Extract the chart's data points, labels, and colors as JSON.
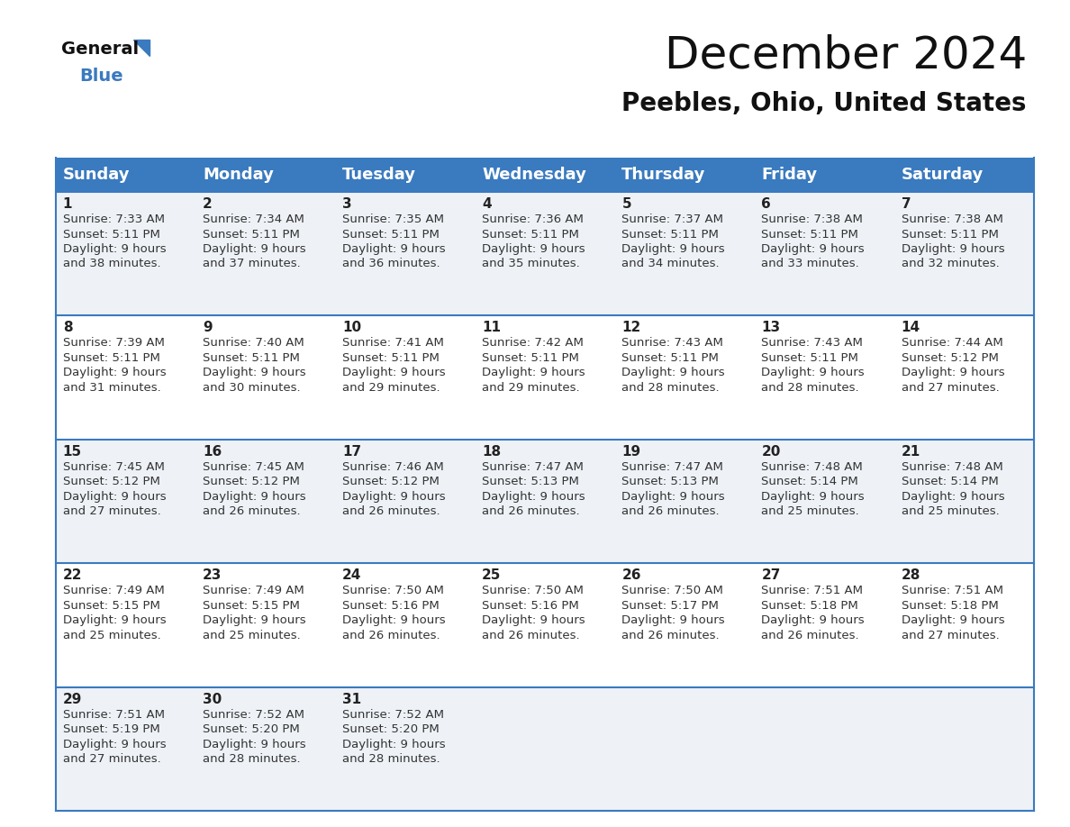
{
  "title": "December 2024",
  "subtitle": "Peebles, Ohio, United States",
  "header_bg": "#3a7abf",
  "header_text": "#ffffff",
  "row_bg_odd": "#eef2f7",
  "row_bg_even": "#ffffff",
  "border_color": "#3a7abf",
  "day_names": [
    "Sunday",
    "Monday",
    "Tuesday",
    "Wednesday",
    "Thursday",
    "Friday",
    "Saturday"
  ],
  "days": [
    {
      "day": 1,
      "sunrise": "7:33 AM",
      "sunset": "5:11 PM",
      "daylight": "9 hours\nand 38 minutes."
    },
    {
      "day": 2,
      "sunrise": "7:34 AM",
      "sunset": "5:11 PM",
      "daylight": "9 hours\nand 37 minutes."
    },
    {
      "day": 3,
      "sunrise": "7:35 AM",
      "sunset": "5:11 PM",
      "daylight": "9 hours\nand 36 minutes."
    },
    {
      "day": 4,
      "sunrise": "7:36 AM",
      "sunset": "5:11 PM",
      "daylight": "9 hours\nand 35 minutes."
    },
    {
      "day": 5,
      "sunrise": "7:37 AM",
      "sunset": "5:11 PM",
      "daylight": "9 hours\nand 34 minutes."
    },
    {
      "day": 6,
      "sunrise": "7:38 AM",
      "sunset": "5:11 PM",
      "daylight": "9 hours\nand 33 minutes."
    },
    {
      "day": 7,
      "sunrise": "7:38 AM",
      "sunset": "5:11 PM",
      "daylight": "9 hours\nand 32 minutes."
    },
    {
      "day": 8,
      "sunrise": "7:39 AM",
      "sunset": "5:11 PM",
      "daylight": "9 hours\nand 31 minutes."
    },
    {
      "day": 9,
      "sunrise": "7:40 AM",
      "sunset": "5:11 PM",
      "daylight": "9 hours\nand 30 minutes."
    },
    {
      "day": 10,
      "sunrise": "7:41 AM",
      "sunset": "5:11 PM",
      "daylight": "9 hours\nand 29 minutes."
    },
    {
      "day": 11,
      "sunrise": "7:42 AM",
      "sunset": "5:11 PM",
      "daylight": "9 hours\nand 29 minutes."
    },
    {
      "day": 12,
      "sunrise": "7:43 AM",
      "sunset": "5:11 PM",
      "daylight": "9 hours\nand 28 minutes."
    },
    {
      "day": 13,
      "sunrise": "7:43 AM",
      "sunset": "5:11 PM",
      "daylight": "9 hours\nand 28 minutes."
    },
    {
      "day": 14,
      "sunrise": "7:44 AM",
      "sunset": "5:12 PM",
      "daylight": "9 hours\nand 27 minutes."
    },
    {
      "day": 15,
      "sunrise": "7:45 AM",
      "sunset": "5:12 PM",
      "daylight": "9 hours\nand 27 minutes."
    },
    {
      "day": 16,
      "sunrise": "7:45 AM",
      "sunset": "5:12 PM",
      "daylight": "9 hours\nand 26 minutes."
    },
    {
      "day": 17,
      "sunrise": "7:46 AM",
      "sunset": "5:12 PM",
      "daylight": "9 hours\nand 26 minutes."
    },
    {
      "day": 18,
      "sunrise": "7:47 AM",
      "sunset": "5:13 PM",
      "daylight": "9 hours\nand 26 minutes."
    },
    {
      "day": 19,
      "sunrise": "7:47 AM",
      "sunset": "5:13 PM",
      "daylight": "9 hours\nand 26 minutes."
    },
    {
      "day": 20,
      "sunrise": "7:48 AM",
      "sunset": "5:14 PM",
      "daylight": "9 hours\nand 25 minutes."
    },
    {
      "day": 21,
      "sunrise": "7:48 AM",
      "sunset": "5:14 PM",
      "daylight": "9 hours\nand 25 minutes."
    },
    {
      "day": 22,
      "sunrise": "7:49 AM",
      "sunset": "5:15 PM",
      "daylight": "9 hours\nand 25 minutes."
    },
    {
      "day": 23,
      "sunrise": "7:49 AM",
      "sunset": "5:15 PM",
      "daylight": "9 hours\nand 25 minutes."
    },
    {
      "day": 24,
      "sunrise": "7:50 AM",
      "sunset": "5:16 PM",
      "daylight": "9 hours\nand 26 minutes."
    },
    {
      "day": 25,
      "sunrise": "7:50 AM",
      "sunset": "5:16 PM",
      "daylight": "9 hours\nand 26 minutes."
    },
    {
      "day": 26,
      "sunrise": "7:50 AM",
      "sunset": "5:17 PM",
      "daylight": "9 hours\nand 26 minutes."
    },
    {
      "day": 27,
      "sunrise": "7:51 AM",
      "sunset": "5:18 PM",
      "daylight": "9 hours\nand 26 minutes."
    },
    {
      "day": 28,
      "sunrise": "7:51 AM",
      "sunset": "5:18 PM",
      "daylight": "9 hours\nand 27 minutes."
    },
    {
      "day": 29,
      "sunrise": "7:51 AM",
      "sunset": "5:19 PM",
      "daylight": "9 hours\nand 27 minutes."
    },
    {
      "day": 30,
      "sunrise": "7:52 AM",
      "sunset": "5:20 PM",
      "daylight": "9 hours\nand 28 minutes."
    },
    {
      "day": 31,
      "sunrise": "7:52 AM",
      "sunset": "5:20 PM",
      "daylight": "9 hours\nand 28 minutes."
    }
  ],
  "logo_text_general": "General",
  "logo_text_blue": "Blue",
  "logo_triangle_color": "#3a7abf",
  "title_fontsize": 36,
  "subtitle_fontsize": 20,
  "header_fontsize": 13,
  "day_num_fontsize": 11,
  "cell_text_fontsize": 9.5
}
